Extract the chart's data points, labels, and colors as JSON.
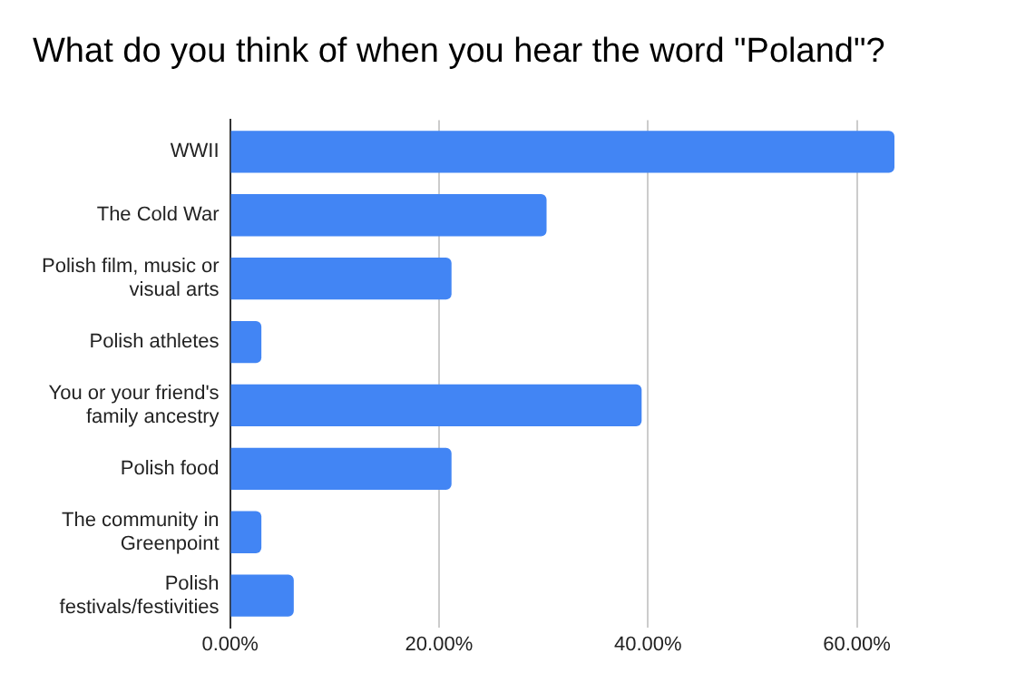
{
  "chart_data": {
    "type": "bar",
    "orientation": "horizontal",
    "title": "What do you think of when you hear the word \"Poland\"?",
    "categories": [
      "WWII",
      "The Cold War",
      "Polish film, music or visual arts",
      "Polish athletes",
      "You or your friend's family ancestry",
      "Polish food",
      "The community in Greenpoint",
      "Polish festivals/festivities"
    ],
    "values": [
      63.6,
      30.3,
      21.2,
      3.0,
      39.4,
      21.2,
      3.0,
      6.1
    ],
    "color": "#4285f4",
    "xlim": [
      0,
      63.6
    ],
    "xticks": [
      {
        "value": 0,
        "label": "0.00%"
      },
      {
        "value": 20,
        "label": "20.00%"
      },
      {
        "value": 40,
        "label": "40.00%"
      },
      {
        "value": 60,
        "label": "60.00%"
      }
    ],
    "grid": "x",
    "legend": false
  }
}
